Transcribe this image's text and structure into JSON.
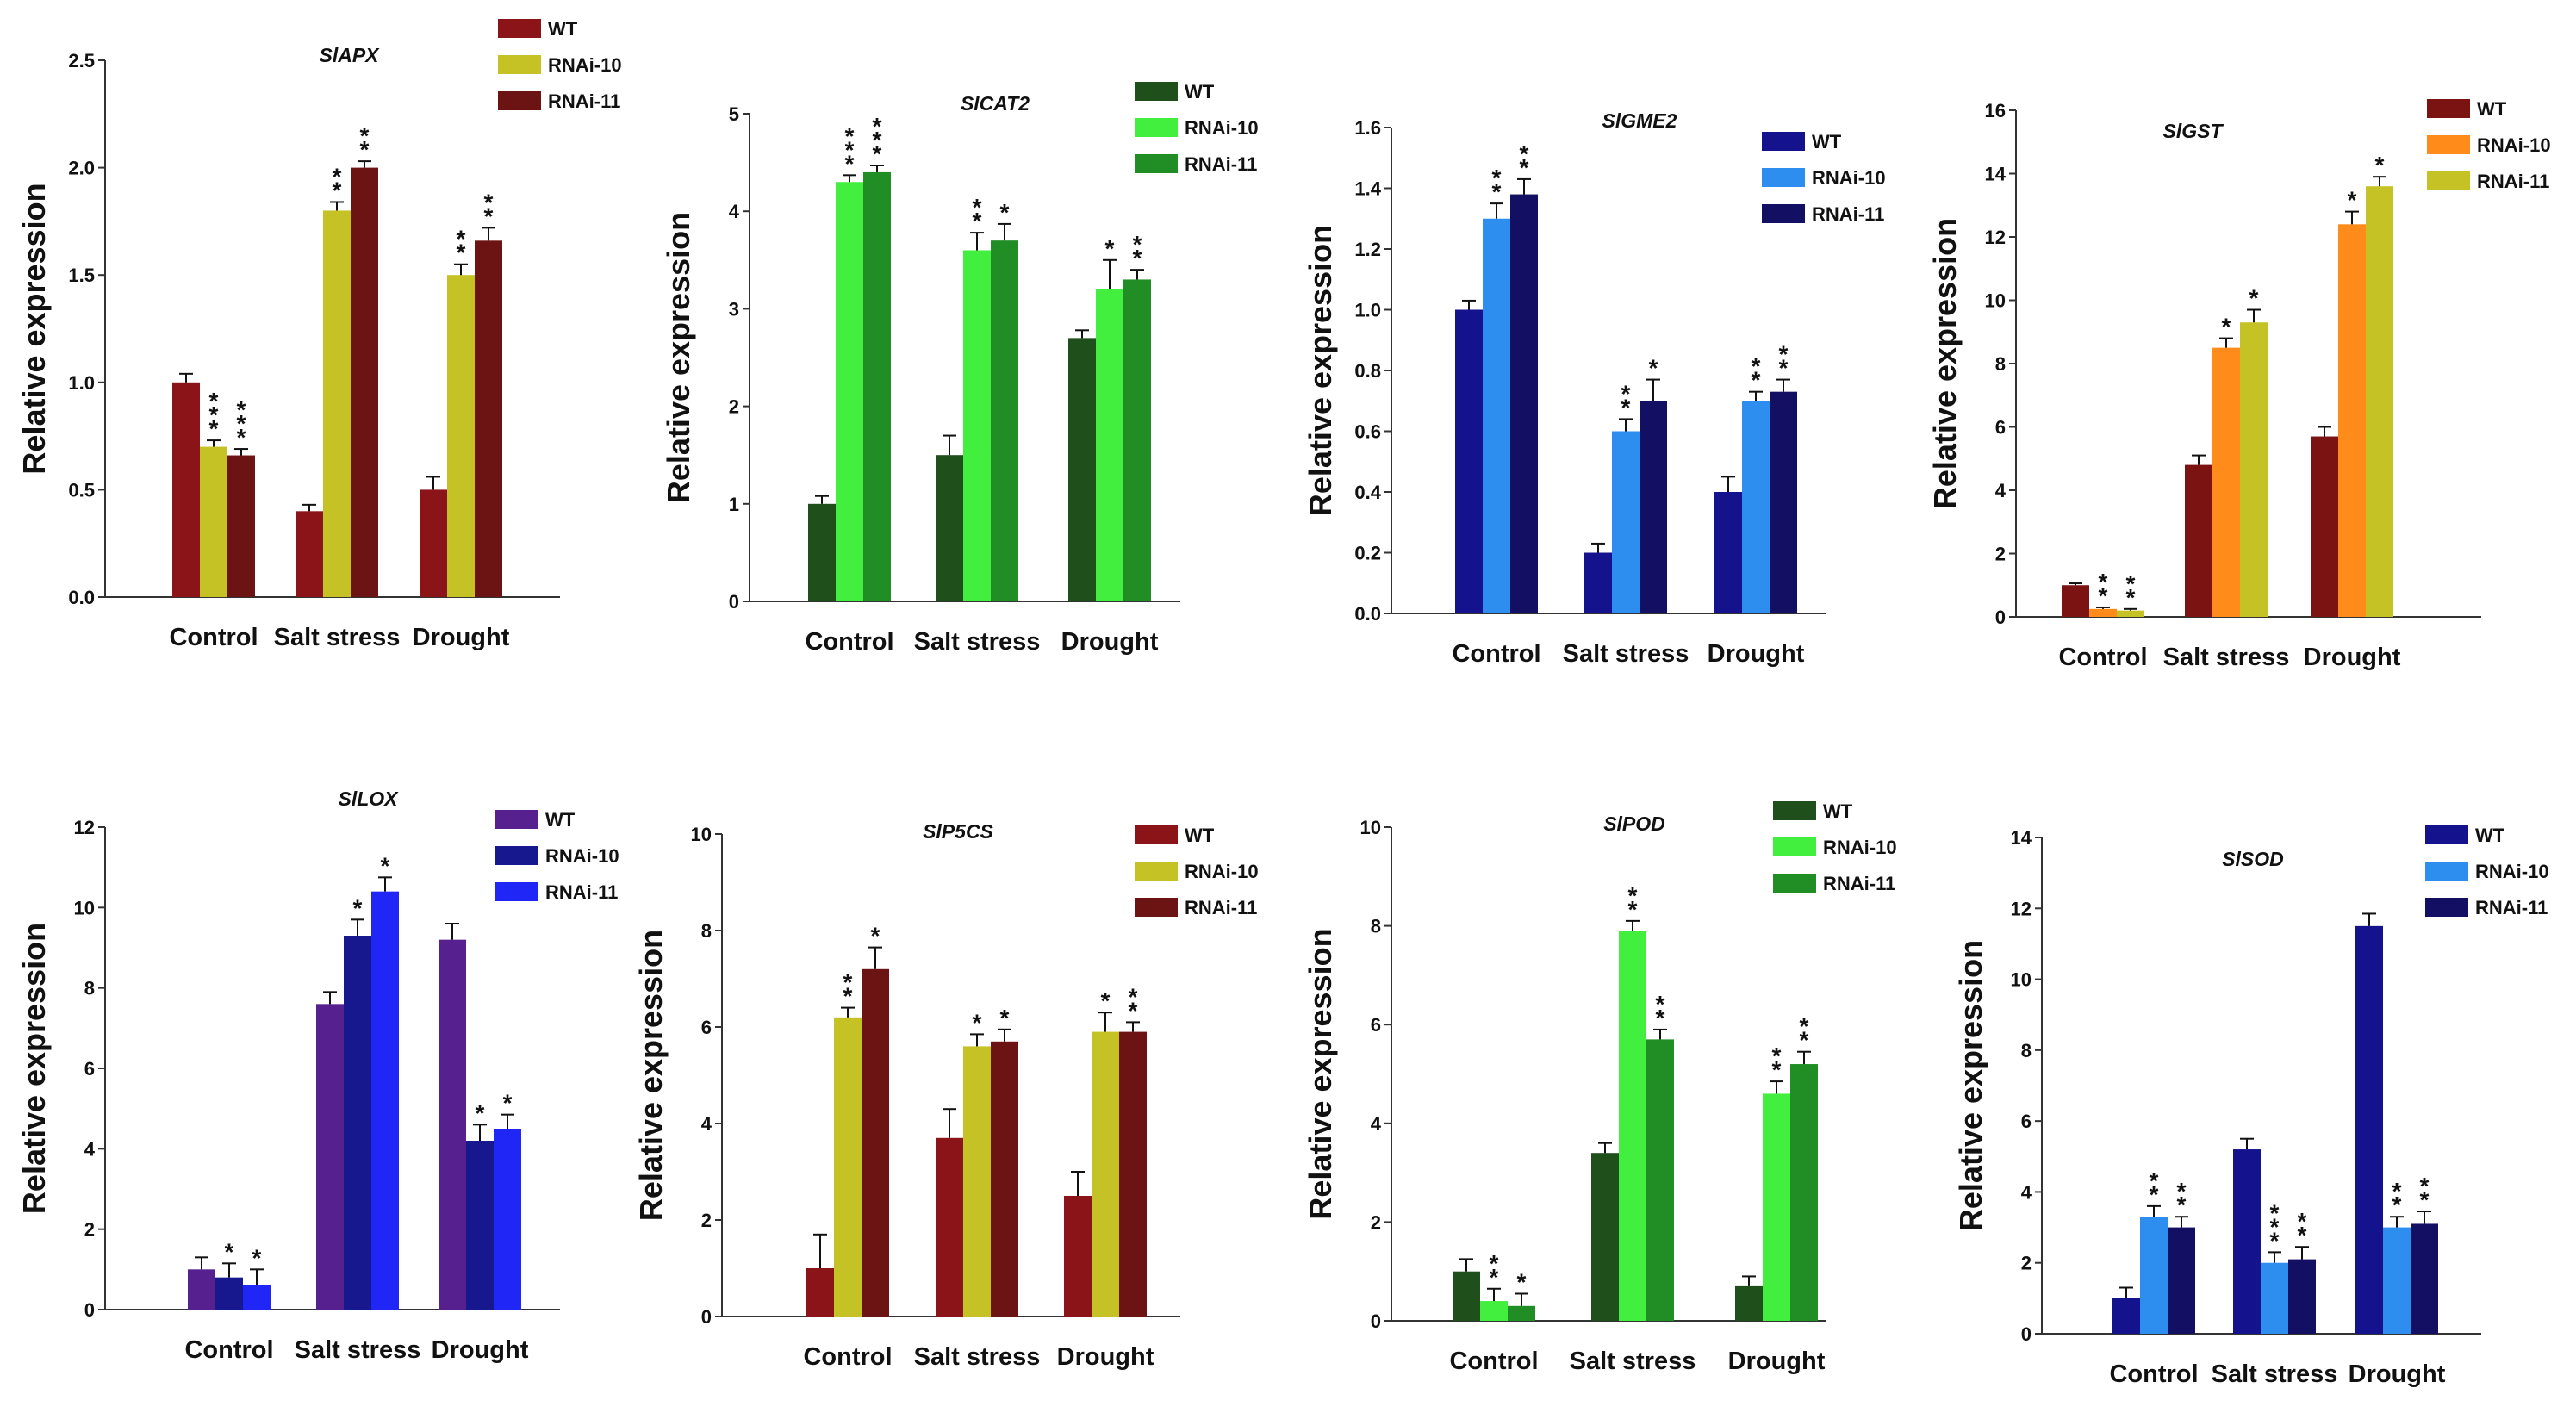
{
  "figure": {
    "ylabel": "Relative expression"
  },
  "chart_data": [
    {
      "type": "bar",
      "title": "SlAPX",
      "ylabel": "Relative expression",
      "categories": [
        "Control",
        "Salt stress",
        "Drought"
      ],
      "ylim": [
        0,
        2.5
      ],
      "ticks": [
        "0.0",
        "0.5",
        "1.0",
        "1.5",
        "2.0",
        "2.5"
      ],
      "series": [
        {
          "name": "WT",
          "color": "#8b1418",
          "values": [
            1.0,
            0.4,
            0.5
          ],
          "errors": [
            0.04,
            0.03,
            0.06
          ],
          "stars": [
            "",
            "",
            ""
          ]
        },
        {
          "name": "RNAi-10",
          "color": "#c4c224",
          "values": [
            0.7,
            1.8,
            1.5
          ],
          "errors": [
            0.03,
            0.04,
            0.05
          ],
          "stars": [
            "***",
            "**",
            "**"
          ]
        },
        {
          "name": "RNAi-11",
          "color": "#6c1414",
          "values": [
            0.66,
            2.0,
            1.66
          ],
          "errors": [
            0.03,
            0.03,
            0.06
          ],
          "stars": [
            "***",
            "**",
            "**"
          ]
        }
      ]
    },
    {
      "type": "bar",
      "title": "SlCAT2",
      "ylabel": "Relative expression",
      "categories": [
        "Control",
        "Salt stress",
        "Drought"
      ],
      "ylim": [
        0,
        5
      ],
      "ticks": [
        "0",
        "1",
        "2",
        "3",
        "4",
        "5"
      ],
      "series": [
        {
          "name": "WT",
          "color": "#1f4f1a",
          "values": [
            1.0,
            1.5,
            2.7
          ],
          "errors": [
            0.08,
            0.2,
            0.08
          ],
          "stars": [
            "",
            "",
            ""
          ]
        },
        {
          "name": "RNAi-10",
          "color": "#42ee3e",
          "values": [
            4.3,
            3.6,
            3.2
          ],
          "errors": [
            0.07,
            0.18,
            0.3
          ],
          "stars": [
            "***",
            "**",
            "*"
          ]
        },
        {
          "name": "RNAi-11",
          "color": "#208e25",
          "values": [
            4.4,
            3.7,
            3.3
          ],
          "errors": [
            0.07,
            0.17,
            0.1
          ],
          "stars": [
            "***",
            "*",
            "**"
          ]
        }
      ]
    },
    {
      "type": "bar",
      "title": "SlGME2",
      "ylabel": "Relative expression",
      "categories": [
        "Control",
        "Salt stress",
        "Drought"
      ],
      "ylim": [
        0,
        1.6
      ],
      "ticks": [
        "0.0",
        "0.2",
        "0.4",
        "0.6",
        "0.8",
        "1.0",
        "1.2",
        "1.4",
        "1.6"
      ],
      "series": [
        {
          "name": "WT",
          "color": "#14128c",
          "values": [
            1.0,
            0.2,
            0.4
          ],
          "errors": [
            0.03,
            0.03,
            0.05
          ],
          "stars": [
            "",
            "",
            ""
          ]
        },
        {
          "name": "RNAi-10",
          "color": "#2e8ef0",
          "values": [
            1.3,
            0.6,
            0.7
          ],
          "errors": [
            0.05,
            0.04,
            0.03
          ],
          "stars": [
            "**",
            "**",
            "**"
          ]
        },
        {
          "name": "RNAi-11",
          "color": "#131063",
          "values": [
            1.38,
            0.7,
            0.73
          ],
          "errors": [
            0.05,
            0.07,
            0.04
          ],
          "stars": [
            "**",
            "*",
            "**"
          ]
        }
      ]
    },
    {
      "type": "bar",
      "title": "SlGST",
      "ylabel": "Relative expression",
      "categories": [
        "Control",
        "Salt stress",
        "Drought"
      ],
      "ylim": [
        0,
        16
      ],
      "ticks": [
        "0",
        "2",
        "4",
        "6",
        "8",
        "10",
        "12",
        "14",
        "16"
      ],
      "series": [
        {
          "name": "WT",
          "color": "#7c1313",
          "values": [
            1.0,
            4.8,
            5.7
          ],
          "errors": [
            0.06,
            0.3,
            0.3
          ],
          "stars": [
            "",
            "",
            ""
          ]
        },
        {
          "name": "RNAi-10",
          "color": "#ff8c1a",
          "values": [
            0.25,
            8.5,
            12.4
          ],
          "errors": [
            0.05,
            0.3,
            0.4
          ],
          "stars": [
            "**",
            "*",
            "*"
          ]
        },
        {
          "name": "RNAi-11",
          "color": "#c5c226",
          "values": [
            0.2,
            9.3,
            13.6
          ],
          "errors": [
            0.05,
            0.4,
            0.3
          ],
          "stars": [
            "**",
            "*",
            "*"
          ]
        }
      ]
    },
    {
      "type": "bar",
      "title": "SlLOX",
      "ylabel": "Relative expression",
      "categories": [
        "Control",
        "Salt stress",
        "Drought"
      ],
      "ylim": [
        0,
        12
      ],
      "ticks": [
        "0",
        "2",
        "4",
        "6",
        "8",
        "10",
        "12"
      ],
      "series": [
        {
          "name": "WT",
          "color": "#56208e",
          "values": [
            1.0,
            7.6,
            9.2
          ],
          "errors": [
            0.3,
            0.3,
            0.4
          ],
          "stars": [
            "",
            "",
            ""
          ]
        },
        {
          "name": "RNAi-10",
          "color": "#17188e",
          "values": [
            0.8,
            9.3,
            4.2
          ],
          "errors": [
            0.35,
            0.4,
            0.4
          ],
          "stars": [
            "*",
            "*",
            "*"
          ]
        },
        {
          "name": "RNAi-11",
          "color": "#2026f5",
          "values": [
            0.6,
            10.4,
            4.5
          ],
          "errors": [
            0.4,
            0.35,
            0.35
          ],
          "stars": [
            "*",
            "*",
            "*"
          ]
        }
      ]
    },
    {
      "type": "bar",
      "title": "SlP5CS",
      "ylabel": "Relative expression",
      "categories": [
        "Control",
        "Salt stress",
        "Drought"
      ],
      "ylim": [
        0,
        10
      ],
      "ticks": [
        "0",
        "2",
        "4",
        "6",
        "8",
        "10"
      ],
      "series": [
        {
          "name": "WT",
          "color": "#8b1418",
          "values": [
            1.0,
            3.7,
            2.5
          ],
          "errors": [
            0.7,
            0.6,
            0.5
          ],
          "stars": [
            "",
            "",
            ""
          ]
        },
        {
          "name": "RNAi-10",
          "color": "#c4c224",
          "values": [
            6.2,
            5.6,
            5.9
          ],
          "errors": [
            0.2,
            0.25,
            0.4
          ],
          "stars": [
            "**",
            "*",
            "*"
          ]
        },
        {
          "name": "RNAi-11",
          "color": "#6c1414",
          "values": [
            7.2,
            5.7,
            5.9
          ],
          "errors": [
            0.45,
            0.25,
            0.2
          ],
          "stars": [
            "*",
            "*",
            "**"
          ]
        }
      ]
    },
    {
      "type": "bar",
      "title": "SlPOD",
      "ylabel": "Relative expression",
      "categories": [
        "Control",
        "Salt stress",
        "Drought"
      ],
      "ylim": [
        0,
        10
      ],
      "ticks": [
        "0",
        "2",
        "4",
        "6",
        "8",
        "10"
      ],
      "series": [
        {
          "name": "WT",
          "color": "#1f4f1a",
          "values": [
            1.0,
            3.4,
            0.7
          ],
          "errors": [
            0.25,
            0.2,
            0.2
          ],
          "stars": [
            "",
            "",
            ""
          ]
        },
        {
          "name": "RNAi-10",
          "color": "#42ee3e",
          "values": [
            0.4,
            7.9,
            4.6
          ],
          "errors": [
            0.25,
            0.2,
            0.25
          ],
          "stars": [
            "**",
            "**",
            "**"
          ]
        },
        {
          "name": "RNAi-11",
          "color": "#208e25",
          "values": [
            0.3,
            5.7,
            5.2
          ],
          "errors": [
            0.25,
            0.2,
            0.25
          ],
          "stars": [
            "*",
            "**",
            "**"
          ]
        }
      ]
    },
    {
      "type": "bar",
      "title": "SlSOD",
      "ylabel": "Relative expression",
      "categories": [
        "Control",
        "Salt stress",
        "Drought"
      ],
      "ylim": [
        0,
        14
      ],
      "ticks": [
        "0",
        "2",
        "4",
        "6",
        "8",
        "10",
        "12",
        "14"
      ],
      "series": [
        {
          "name": "WT",
          "color": "#14128c",
          "values": [
            1.0,
            5.2,
            11.5
          ],
          "errors": [
            0.3,
            0.3,
            0.35
          ],
          "stars": [
            "",
            "",
            ""
          ]
        },
        {
          "name": "RNAi-10",
          "color": "#2e8ef0",
          "values": [
            3.3,
            2.0,
            3.0
          ],
          "errors": [
            0.3,
            0.3,
            0.3
          ],
          "stars": [
            "**",
            "***",
            "**"
          ]
        },
        {
          "name": "RNAi-11",
          "color": "#131063",
          "values": [
            3.0,
            2.1,
            3.1
          ],
          "errors": [
            0.3,
            0.35,
            0.35
          ],
          "stars": [
            "**",
            "**",
            "**"
          ]
        }
      ]
    }
  ]
}
